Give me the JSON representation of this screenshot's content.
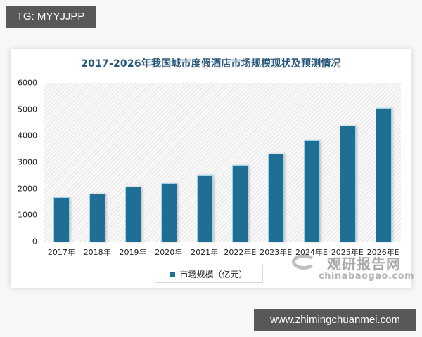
{
  "overlay": {
    "top_tag": "TG: MYYJJPP",
    "bottom_tag": "www.zhimingchuanmei.com"
  },
  "watermark": {
    "cn": "观研报告网",
    "en": "chinabaogao.com"
  },
  "chart_data": {
    "type": "bar",
    "title": "2017-2026年我国城市度假酒店市场规模现状及预测情况",
    "xlabel": "",
    "ylabel": "",
    "categories": [
      "2017年",
      "2018年",
      "2019年",
      "2020年",
      "2021年",
      "2022年E",
      "2023年E",
      "2024年E",
      "2025年E",
      "2026年E"
    ],
    "series": [
      {
        "name": "市场规模（亿元）",
        "color": "#1f6e94",
        "values": [
          1670,
          1800,
          2070,
          2200,
          2520,
          2890,
          3320,
          3820,
          4380,
          5040
        ]
      }
    ],
    "yticks": [
      "0",
      "1000",
      "2000",
      "3000",
      "4000",
      "5000",
      "6000"
    ],
    "ylim": [
      0,
      6000
    ],
    "grid": false,
    "legend_position": "bottom"
  }
}
